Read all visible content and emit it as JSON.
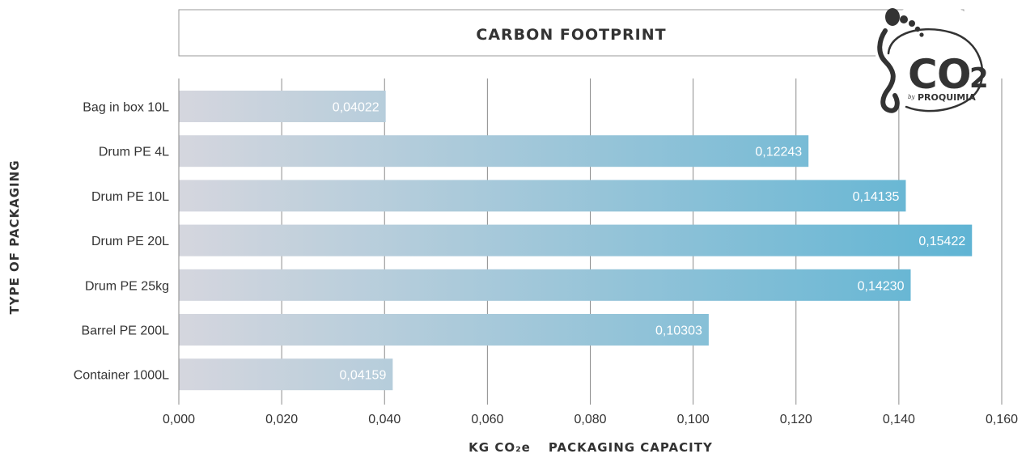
{
  "chart_data": {
    "type": "bar",
    "orientation": "horizontal",
    "title": "CARBON FOOTPRINT",
    "xlabel_unit": "KG CO₂e",
    "xlabel": "PACKAGING CAPACITY",
    "ylabel": "TYPE OF PACKAGING",
    "categories": [
      "Bag in box 10L",
      "Drum PE 4L",
      "Drum PE 10L",
      "Drum PE 20L",
      "Drum PE 25kg",
      "Barrel PE 200L",
      "Container 1000L"
    ],
    "values": [
      0.04022,
      0.12243,
      0.14135,
      0.15422,
      0.1423,
      0.10303,
      0.04159
    ],
    "value_labels": [
      "0,04022",
      "0,12243",
      "0,14135",
      "0,15422",
      "0,14230",
      "0,10303",
      "0,04159"
    ],
    "xlim": [
      0,
      0.16
    ],
    "xticks": [
      0,
      0.02,
      0.04,
      0.06,
      0.08,
      0.1,
      0.12,
      0.14,
      0.16
    ],
    "xtick_labels": [
      "0,000",
      "0,020",
      "0,040",
      "0,060",
      "0,080",
      "0,100",
      "0,120",
      "0,140",
      "0,160"
    ],
    "grid": "vertical",
    "bar_gradient": [
      "#d5d6de",
      "#5bb3d3"
    ]
  },
  "logo": {
    "mark": "CO2",
    "by": "by",
    "brand": "PROQUIMIA",
    "icon": "footprint-icon"
  }
}
